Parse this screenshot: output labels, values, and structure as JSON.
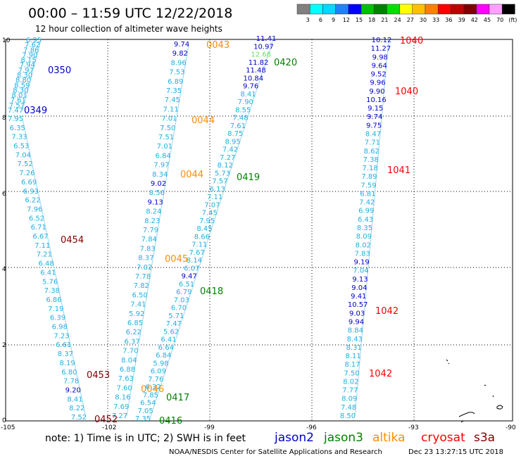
{
  "title": "00:00 – 11:59 UTC 12/22/2018",
  "subtitle": "12 hour collection of altimeter wave heights",
  "color_scale": {
    "colors": [
      "#808080",
      "#00ffff",
      "#00d8ff",
      "#2080ff",
      "#0000ff",
      "#00c000",
      "#008000",
      "#00e000",
      "#ffff00",
      "#ffc000",
      "#ff8000",
      "#ff0000",
      "#c00000",
      "#800000",
      "#ff00ff",
      "#ffa0ff",
      "#000000"
    ],
    "labels": [
      "3",
      "6",
      "9",
      "12",
      "15",
      "18",
      "21",
      "24",
      "27",
      "30",
      "33",
      "36",
      "39",
      "42",
      "45",
      "70",
      "(ft)"
    ]
  },
  "axes": {
    "x_labels": [
      "-105",
      "-102",
      "-99",
      "-96",
      "-93",
      "-90"
    ],
    "y_labels": [
      "0",
      "2",
      "4",
      "6",
      "8",
      "10"
    ]
  },
  "tracks": [
    {
      "id": "0350",
      "color": "#0000cc",
      "values": [
        "6.95",
        "7.62",
        "7.86",
        "7.90",
        "8.15",
        "7.94",
        "7.97",
        "8.30",
        "8.80",
        "8.59",
        "8.30",
        "8.01",
        "7.61",
        "7.57",
        "7.47"
      ]
    },
    {
      "id": "0349",
      "color": "#0000cc",
      "values": [
        "7.95",
        "6.35",
        "7.33",
        "6.53",
        "7.04",
        "7.52",
        "7.26",
        "6.69",
        "6.93",
        "6.22",
        "7.96",
        "6.52",
        "6.71",
        "6.67",
        "7.11",
        "7.21",
        "6.48",
        "6.41",
        "5.76",
        "7.38",
        "6.86",
        "7.19",
        "6.39",
        "6.98",
        "7.23",
        "6.61",
        "8.37",
        "8.19",
        "6.80",
        "7.78",
        "9.20",
        "8.41",
        "8.22",
        "7.52"
      ]
    },
    {
      "id": "0043",
      "color": "#0000cc",
      "values": [
        "9.74",
        "9.82",
        "8.96",
        "7.53",
        "6.89",
        "7.35",
        "7.45",
        "7.11",
        "7.01",
        "7.50",
        "7.51",
        "7.01",
        "6.84",
        "7.97",
        "8.34",
        "9.02",
        "8.56",
        "9.13",
        "8.24",
        "8.23",
        "7.79",
        "7.84",
        "7.83",
        "8.37",
        "7.02",
        "7.78",
        "7.82",
        "6.50",
        "7.41",
        "5.92",
        "6.85",
        "6.22",
        "6.37",
        "7.70",
        "8.04",
        "6.88",
        "7.63",
        "7.60",
        "8.16",
        "7.69",
        "7.27"
      ]
    },
    {
      "id": "0420",
      "color": "#0000cc",
      "values": [
        "11.41",
        "10.97",
        "12.68",
        "11.82",
        "11.48",
        "10.84",
        "9.76",
        "8.41",
        "7.90",
        "8.55",
        "7.48",
        "7.61",
        "8.75",
        "8.95",
        "7.42",
        "7.27",
        "8.12",
        "5.73",
        "7.57",
        "6.13",
        "7.11",
        "7.07",
        "7.45",
        "7.95",
        "8.45",
        "8.66",
        "7.11",
        "7.67",
        "8.14",
        "6.07",
        "9.47",
        "6.51",
        "6.79",
        "7.03",
        "6.70",
        "5.71",
        "7.47",
        "5.62",
        "6.41",
        "6.64",
        "6.84",
        "5.98",
        "6.09",
        "7.76",
        "6.32",
        "7.85",
        "6.54",
        "7.05",
        "7.35"
      ]
    },
    {
      "id": "1040",
      "color": "#0000cc",
      "values": [
        "10.12",
        "11.27",
        "9.98",
        "9.64",
        "9.52",
        "9.96",
        "9.90",
        "10.16",
        "9.15",
        "9.74",
        "9.75",
        "8.47",
        "7.71",
        "8.62",
        "7.38",
        "7.18",
        "7.89",
        "7.59",
        "6.81",
        "7.42",
        "6.99",
        "6.43",
        "8.35",
        "8.09",
        "8.02",
        "7.83",
        "9.19",
        "7.04",
        "9.13",
        "9.04",
        "9.41",
        "10.57",
        "9.03",
        "9.94",
        "8.84",
        "8.43",
        "8.31",
        "8.11",
        "8.17",
        "7.50",
        "8.02",
        "7.77",
        "8.09",
        "7.48",
        "8.50"
      ]
    }
  ],
  "time_labels": [
    {
      "text": "0350",
      "color": "#0000cc"
    },
    {
      "text": "0349",
      "color": "#0000cc"
    },
    {
      "text": "0454",
      "color": "#800000"
    },
    {
      "text": "0453",
      "color": "#800000"
    },
    {
      "text": "0452",
      "color": "#800000"
    },
    {
      "text": "0043",
      "color": "#ff8c00"
    },
    {
      "text": "0044",
      "color": "#ff8c00"
    },
    {
      "text": "0044",
      "color": "#ff8c00"
    },
    {
      "text": "0045",
      "color": "#ff8c00"
    },
    {
      "text": "0046",
      "color": "#ff8c00"
    },
    {
      "text": "0420",
      "color": "#008000"
    },
    {
      "text": "0419",
      "color": "#008000"
    },
    {
      "text": "0418",
      "color": "#008000"
    },
    {
      "text": "0417",
      "color": "#008000"
    },
    {
      "text": "0416",
      "color": "#008000"
    },
    {
      "text": "1040",
      "color": "#ff0000"
    },
    {
      "text": "1040",
      "color": "#ff0000"
    },
    {
      "text": "1041",
      "color": "#ff0000"
    },
    {
      "text": "1042",
      "color": "#ff0000"
    },
    {
      "text": "1042",
      "color": "#ff0000"
    }
  ],
  "note": "note: 1) Time is in UTC; 2) SWH is in feet",
  "legend": [
    {
      "name": "jason2",
      "color": "#0000cc"
    },
    {
      "name": "jason3",
      "color": "#008000"
    },
    {
      "name": "altika",
      "color": "#ff8c00"
    },
    {
      "name": "cryosat",
      "color": "#ff0000"
    },
    {
      "name": "s3a",
      "color": "#800000"
    }
  ],
  "footer_left": "NOAA/NESDIS Center for Satellite Applications and Research",
  "footer_right": "Dec 23 13:27:15 UTC 2018"
}
